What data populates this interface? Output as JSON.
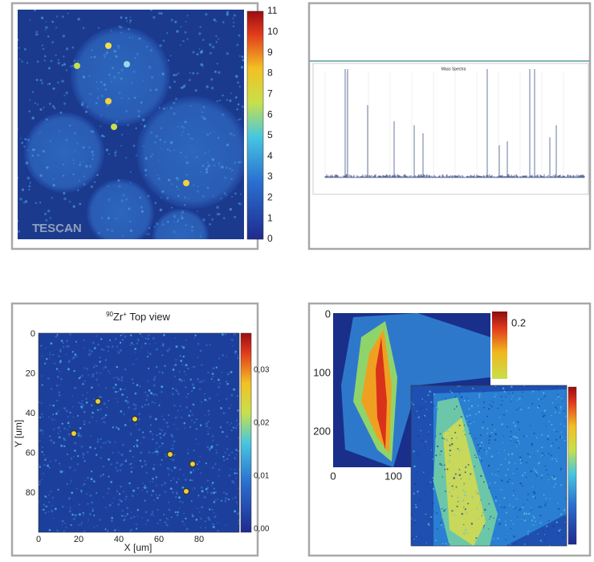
{
  "panels": [
    {
      "logo": "TESCAN",
      "colorbar_ticks": [
        "0",
        "1",
        "2",
        "3",
        "4",
        "5",
        "6",
        "7",
        "8",
        "9",
        "10",
        "11"
      ]
    },
    {
      "title": "Mass Spectra"
    },
    {
      "title": {
        "isotope": "90",
        "element": "Zr",
        "charge": "+",
        "rest": " Top view"
      },
      "x_label": "X [um]",
      "y_label": "Y [um]",
      "x_ticks": [
        "0",
        "20",
        "40",
        "60",
        "80"
      ],
      "y_ticks": [
        "0",
        "20",
        "40",
        "60",
        "80"
      ],
      "colorbar_ticks": [
        "0,03",
        "0,02",
        "0,01",
        "0,00"
      ]
    },
    {
      "y_ticks": [
        "0",
        "100",
        "200"
      ],
      "x_ticks": [
        "0",
        "100"
      ],
      "colorbar_ticks": [
        "0.2"
      ]
    }
  ]
}
